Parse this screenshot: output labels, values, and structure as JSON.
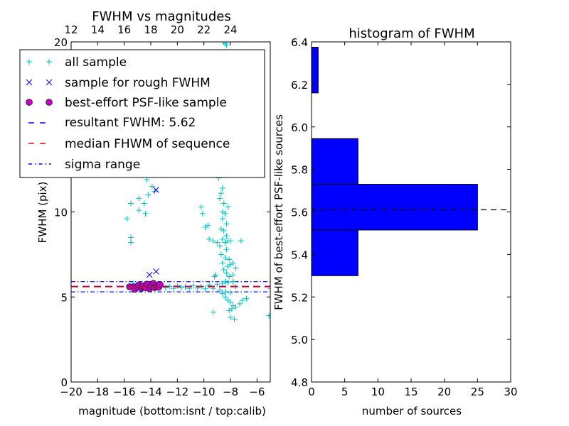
{
  "chart_data": [
    {
      "type": "scatter",
      "title": "FWHM vs magnitudes",
      "xlabel": "magnitude (bottom:isnt / top:calib)",
      "ylabel": "FWHM (pix)",
      "xlim": [
        -20,
        -5
      ],
      "ylim": [
        0,
        20
      ],
      "x_ticks": [
        -20,
        -18,
        -16,
        -14,
        -12,
        -10,
        -8,
        -6
      ],
      "x_tick_labels": [
        "−20",
        "−18",
        "−16",
        "−14",
        "−12",
        "−10",
        "−8",
        "−6"
      ],
      "y_ticks": [
        0,
        5,
        10,
        20
      ],
      "y_tick_labels": [
        "0",
        "5",
        "10",
        "20"
      ],
      "top_axis": {
        "ticks": [
          12,
          14,
          16,
          18,
          20,
          22,
          24
        ],
        "tick_labels": [
          "12",
          "14",
          "16",
          "18",
          "20",
          "22",
          "24"
        ],
        "offset": 32
      },
      "legend_placement": "upper-left",
      "legend": [
        {
          "label": "all sample",
          "marker": "plus",
          "color": "#00bfbf"
        },
        {
          "label": "sample for rough FWHM",
          "marker": "x",
          "color": "#0000ff"
        },
        {
          "label": "best-effort PSF-like sample",
          "marker": "circle",
          "color": "#bf00bf"
        },
        {
          "label": "resultant FWHM: 5.62",
          "linestyle": "dashed",
          "color": "#0000ff"
        },
        {
          "label": "median FHWM of sequence",
          "linestyle": "dashed",
          "color": "#ff0000"
        },
        {
          "label": "sigma range",
          "linestyle": "dashdot",
          "color": "#0000ff"
        }
      ],
      "lines": {
        "resultant_fwhm": 5.62,
        "median_fwhm": 5.6,
        "sigma_low": 5.3,
        "sigma_high": 5.9
      },
      "series": [
        {
          "name": "all sample",
          "color": "#00bfbf",
          "points": [
            [
              -15.8,
              9.6
            ],
            [
              -15.5,
              10.5
            ],
            [
              -15.5,
              8.2
            ],
            [
              -15.5,
              8.5
            ],
            [
              -14.9,
              10.8
            ],
            [
              -14.9,
              10.1
            ],
            [
              -14.5,
              10.5
            ],
            [
              -14.4,
              9.9
            ],
            [
              -14.2,
              11.0
            ],
            [
              -13.9,
              11.5
            ],
            [
              -14.3,
              11.9
            ],
            [
              -13.7,
              11.2
            ],
            [
              -10.2,
              10.3
            ],
            [
              -10.1,
              9.9
            ],
            [
              -9.9,
              9.1
            ],
            [
              -9.7,
              9.2
            ],
            [
              -10.0,
              20.0
            ],
            [
              -8.3,
              19.8
            ],
            [
              -8.4,
              19.9
            ],
            [
              -8.5,
              20.0
            ],
            [
              -8.9,
              12.0
            ],
            [
              -8.6,
              11.4
            ],
            [
              -8.7,
              11.1
            ],
            [
              -8.8,
              10.8
            ],
            [
              -8.5,
              10.5
            ],
            [
              -8.2,
              10.3
            ],
            [
              -8.6,
              10.0
            ],
            [
              -8.4,
              9.9
            ],
            [
              -8.6,
              9.6
            ],
            [
              -8.3,
              9.3
            ],
            [
              -8.7,
              9.0
            ],
            [
              -8.5,
              8.9
            ],
            [
              -8.3,
              8.6
            ],
            [
              -8.6,
              8.4
            ],
            [
              -8.2,
              8.3
            ],
            [
              -8.4,
              8.2
            ],
            [
              -9.6,
              8.4
            ],
            [
              -9.3,
              8.3
            ],
            [
              -9.0,
              8.2
            ],
            [
              -8.0,
              8.3
            ],
            [
              -7.2,
              8.3
            ],
            [
              -8.8,
              8.0
            ],
            [
              -8.3,
              7.8
            ],
            [
              -8.7,
              7.5
            ],
            [
              -8.4,
              7.3
            ],
            [
              -8.1,
              7.2
            ],
            [
              -8.6,
              7.0
            ],
            [
              -8.2,
              6.8
            ],
            [
              -8.5,
              6.6
            ],
            [
              -8.0,
              6.9
            ],
            [
              -7.8,
              7.0
            ],
            [
              -7.6,
              6.7
            ],
            [
              -8.3,
              6.4
            ],
            [
              -8.1,
              6.2
            ],
            [
              -7.8,
              6.3
            ],
            [
              -9.1,
              6.3
            ],
            [
              -9.2,
              6.2
            ],
            [
              -7.8,
              5.9
            ],
            [
              -8.4,
              5.9
            ],
            [
              -15.3,
              5.8
            ],
            [
              -13.2,
              5.6
            ],
            [
              -12.9,
              5.55
            ],
            [
              -12.6,
              5.62
            ],
            [
              -12.3,
              5.5
            ],
            [
              -12.0,
              5.65
            ],
            [
              -11.7,
              5.55
            ],
            [
              -11.4,
              5.6
            ],
            [
              -11.1,
              5.5
            ],
            [
              -10.8,
              5.66
            ],
            [
              -10.5,
              5.52
            ],
            [
              -10.2,
              5.6
            ],
            [
              -9.9,
              5.48
            ],
            [
              -9.6,
              5.7
            ],
            [
              -9.3,
              5.5
            ],
            [
              -9.0,
              5.75
            ],
            [
              -8.8,
              5.4
            ],
            [
              -8.6,
              5.8
            ],
            [
              -8.4,
              5.3
            ],
            [
              -8.2,
              5.85
            ],
            [
              -8.0,
              5.25
            ],
            [
              -7.8,
              5.9
            ],
            [
              -7.6,
              5.6
            ],
            [
              -8.6,
              5.2
            ],
            [
              -8.4,
              5.0
            ],
            [
              -8.2,
              4.8
            ],
            [
              -8.0,
              4.7
            ],
            [
              -7.8,
              4.5
            ],
            [
              -7.6,
              4.4
            ],
            [
              -7.3,
              4.6
            ],
            [
              -7.1,
              4.8
            ],
            [
              -6.8,
              4.9
            ],
            [
              -8.1,
              4.2
            ],
            [
              -7.9,
              4.3
            ],
            [
              -9.3,
              4.1
            ],
            [
              -8.0,
              3.8
            ],
            [
              -7.7,
              3.7
            ],
            [
              -5.1,
              3.9
            ],
            [
              -5.0,
              5.5
            ]
          ]
        },
        {
          "name": "sample for rough FWHM",
          "color": "#0000ff",
          "points": [
            [
              -13.6,
              11.3
            ],
            [
              -14.1,
              6.3
            ],
            [
              -13.6,
              6.5
            ]
          ]
        },
        {
          "name": "best-effort PSF-like sample",
          "color": "#bf00bf",
          "points": [
            [
              -15.6,
              5.6
            ],
            [
              -15.3,
              5.58
            ],
            [
              -15.2,
              5.45
            ],
            [
              -15.0,
              5.6
            ],
            [
              -14.9,
              5.7
            ],
            [
              -14.7,
              5.52
            ],
            [
              -14.6,
              5.65
            ],
            [
              -14.4,
              5.55
            ],
            [
              -14.3,
              5.75
            ],
            [
              -14.1,
              5.48
            ],
            [
              -14.0,
              5.62
            ],
            [
              -13.9,
              5.7
            ],
            [
              -13.8,
              5.8
            ],
            [
              -13.7,
              5.55
            ],
            [
              -13.6,
              5.68
            ],
            [
              -13.5,
              5.62
            ],
            [
              -13.4,
              5.58
            ],
            [
              -13.3,
              5.72
            ]
          ]
        }
      ]
    },
    {
      "type": "bar",
      "orientation": "horizontal",
      "title": "histogram of FWHM",
      "xlabel": "number of sources",
      "ylabel": "FWHM of best-effort PSF-like sources",
      "xlim": [
        0,
        30
      ],
      "ylim": [
        4.8,
        6.4
      ],
      "x_ticks": [
        0,
        5,
        10,
        15,
        20,
        25,
        30
      ],
      "x_tick_labels": [
        "0",
        "5",
        "10",
        "15",
        "20",
        "25",
        "30"
      ],
      "y_ticks": [
        4.8,
        5.0,
        5.2,
        5.4,
        5.6,
        5.8,
        6.0,
        6.2,
        6.4
      ],
      "y_tick_labels": [
        "4.8",
        "5.0",
        "5.2",
        "5.4",
        "5.6",
        "5.8",
        "6.0",
        "6.2",
        "6.4"
      ],
      "bar_color": "#0000ff",
      "bins": [
        {
          "from": 5.3,
          "to": 5.515,
          "count": 7
        },
        {
          "from": 5.515,
          "to": 5.73,
          "count": 25
        },
        {
          "from": 5.73,
          "to": 5.945,
          "count": 7
        },
        {
          "from": 5.945,
          "to": 6.16,
          "count": 0
        },
        {
          "from": 6.16,
          "to": 6.375,
          "count": 1
        }
      ],
      "reference_line": 5.61
    }
  ]
}
